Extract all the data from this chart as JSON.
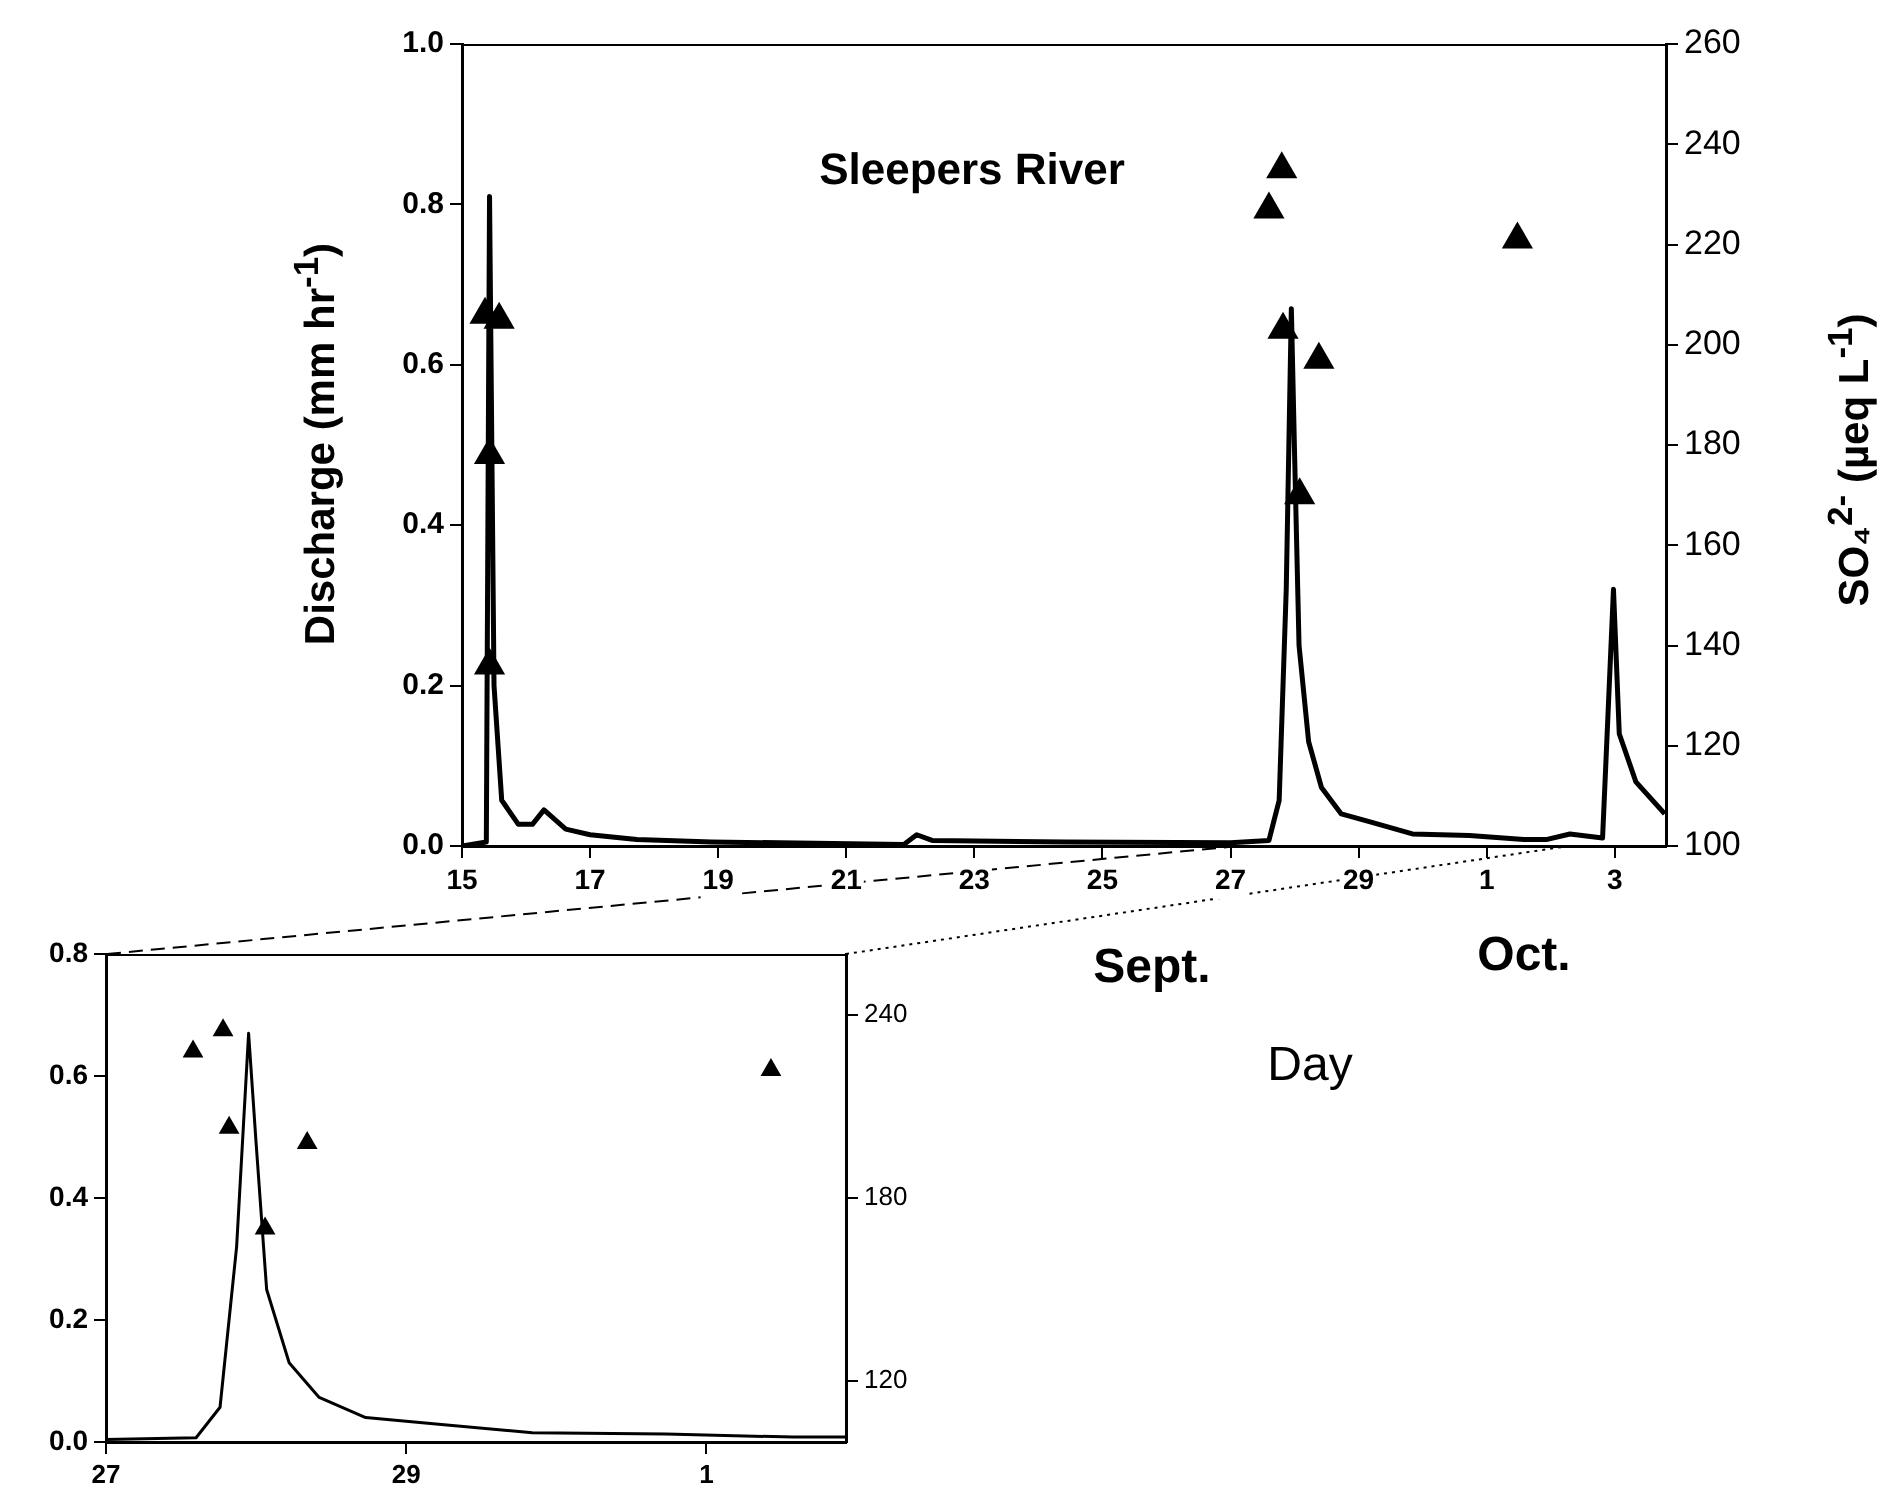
{
  "chart_data": [
    {
      "type": "line",
      "title": "Sleepers River",
      "ylabel": "Discharge (mm hr$^{-1}$)",
      "y2label": "SO₄$^{2-}$ (µeq L$^{-1}$)",
      "xlabel": "Day",
      "annotations": [
        "Sept.",
        "Oct."
      ],
      "xlim": [
        "--09-15",
        "--10-03T19:12"
      ],
      "xticks": [
        {
          "value": "--09-15",
          "label": "15"
        },
        {
          "value": "--09-17",
          "label": "17"
        },
        {
          "value": "--09-19",
          "label": "19"
        },
        {
          "value": "--09-21",
          "label": "21"
        },
        {
          "value": "--09-23",
          "label": "23"
        },
        {
          "value": "--09-25",
          "label": "25"
        },
        {
          "value": "--09-27",
          "label": "27"
        },
        {
          "value": "--09-29",
          "label": "29"
        },
        {
          "value": "--10-01",
          "label": "1"
        },
        {
          "value": "--10-03",
          "label": "3"
        }
      ],
      "ylim": [
        0,
        1
      ],
      "yticks": [
        {
          "value": 0,
          "label": "0.0"
        },
        {
          "value": 0.2,
          "label": "0.2"
        },
        {
          "value": 0.4,
          "label": "0.4"
        },
        {
          "value": 0.6,
          "label": "0.6"
        },
        {
          "value": 0.8,
          "label": "0.8"
        },
        {
          "value": 1,
          "label": "1.0"
        }
      ],
      "y2lim": [
        100,
        260
      ],
      "y2ticks": [
        100,
        120,
        140,
        160,
        180,
        200,
        220,
        240,
        260
      ],
      "series": [
        {
          "type": "line",
          "color": "#000000",
          "x": [
            "--09-15T00:00",
            "--09-15T09:07",
            "--09-15T10:19",
            "--09-15T12:00",
            "--09-15T14:53",
            "--09-15T21:07",
            "--09-16T02:24",
            "--09-16T06:43",
            "--09-16T14:53",
            "--09-17T00:00",
            "--09-17T17:31",
            "--09-18T21:36",
            "--09-21T21:36",
            "--09-22T02:24",
            "--09-22T08:10",
            "--09-24T10:05",
            "--09-27T00:00",
            "--09-27T14:24",
            "--09-27T18:14",
            "--09-27T20:53",
            "--09-27T22:48",
            "--09-28T00:00",
            "--09-28T01:41",
            "--09-28T05:17",
            "--09-28T10:05",
            "--09-28T17:31",
            "--09-29T04:19",
            "--09-29T20:10",
            "--09-30T17:31",
            "--10-01T13:55",
            "--10-01T22:19",
            "--10-02T07:12",
            "--10-02T19:26",
            "--10-02T23:31",
            "--10-03T01:41",
            "--10-03T07:55",
            "--10-03T18:43"
          ],
          "values": [
            0,
            0.005,
            0.81,
            0.2,
            0.057,
            0.027,
            0.027,
            0.045,
            0.021,
            0.014,
            0.008,
            0.005,
            0.002,
            0.014,
            0.007,
            0.005,
            0.004,
            0.007,
            0.057,
            0.32,
            0.67,
            0.49,
            0.25,
            0.13,
            0.073,
            0.04,
            0.03,
            0.015,
            0.013,
            0.008,
            0.008,
            0.015,
            0.01,
            0.32,
            0.14,
            0.08,
            0.04
          ]
        },
        {
          "type": "scatter",
          "axis": "y2",
          "marker": "triangle",
          "color": "#000000",
          "x": [
            "--09-15T08:38",
            "--09-15T13:55",
            "--09-15T10:19",
            "--09-15T10:19",
            "--09-27T14:24",
            "--09-27T19:12",
            "--09-27T19:41",
            "--09-28T01:55",
            "--09-28T09:07",
            "--10-01T11:31"
          ],
          "values": [
            206,
            205,
            178,
            136,
            227,
            235,
            203,
            170,
            197,
            221
          ]
        }
      ]
    },
    {
      "type": "line",
      "xlim": [
        "--09-27",
        "--10-01T22:19"
      ],
      "xticks": [
        {
          "value": "--09-27",
          "label": "27"
        },
        {
          "value": "--09-29",
          "label": "29"
        },
        {
          "value": "--10-01",
          "label": "1"
        }
      ],
      "ylim": [
        0,
        0.8
      ],
      "yticks": [
        {
          "value": 0,
          "label": "0.0"
        },
        {
          "value": 0.2,
          "label": "0.2"
        },
        {
          "value": 0.4,
          "label": "0.4"
        },
        {
          "value": 0.6,
          "label": "0.6"
        },
        {
          "value": 0.8,
          "label": "0.8"
        }
      ],
      "y2lim": [
        100,
        260
      ],
      "y2ticks": [
        120,
        180,
        240
      ],
      "series": [
        {
          "type": "line",
          "color": "#000000",
          "x": [
            "--09-27T00:00",
            "--09-27T14:24",
            "--09-27T18:14",
            "--09-27T20:53",
            "--09-27T22:48",
            "--09-28T00:00",
            "--09-28T01:41",
            "--09-28T05:17",
            "--09-28T10:05",
            "--09-28T17:31",
            "--09-29T04:19",
            "--09-29T20:10",
            "--09-30T17:31",
            "--10-01T13:55",
            "--10-01T22:19"
          ],
          "values": [
            0.004,
            0.007,
            0.057,
            0.32,
            0.67,
            0.49,
            0.25,
            0.13,
            0.073,
            0.04,
            0.03,
            0.015,
            0.013,
            0.008,
            0.008
          ]
        },
        {
          "type": "scatter",
          "axis": "y2",
          "marker": "triangle",
          "color": "#000000",
          "x": [
            "--09-27T13:55",
            "--09-27T18:43",
            "--09-27T19:41",
            "--09-28T01:26",
            "--09-28T08:10",
            "--10-01T10:19"
          ],
          "values": [
            228,
            235,
            203,
            170,
            198,
            222
          ]
        }
      ]
    }
  ]
}
